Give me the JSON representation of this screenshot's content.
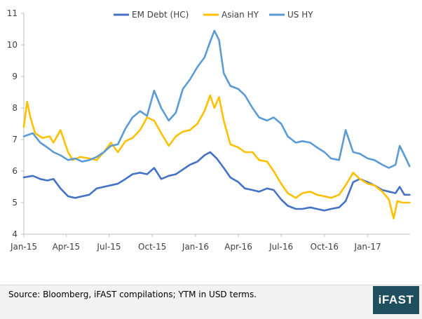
{
  "chart_data": {
    "type": "line",
    "title": "",
    "xlabel": "",
    "ylabel": "",
    "ylim": [
      4,
      11
    ],
    "yticks": [
      4,
      5,
      6,
      7,
      8,
      9,
      10,
      11
    ],
    "x_tick_labels": [
      "Jan-15",
      "Apr-15",
      "Jul-15",
      "Oct-15",
      "Jan-16",
      "Apr-16",
      "Jul-16",
      "Oct-16",
      "Jan-17"
    ],
    "x_tick_dates": [
      "2015-01-01",
      "2015-04-01",
      "2015-07-01",
      "2015-10-01",
      "2016-01-01",
      "2016-04-01",
      "2016-07-01",
      "2016-10-01",
      "2017-01-01"
    ],
    "x_range": [
      "2015-01-01",
      "2017-04-01"
    ],
    "grid": false,
    "legend_position": "top",
    "series": [
      {
        "name": "EM Debt (HC)",
        "color": "#4472c4",
        "points": [
          [
            "2015-01-01",
            5.8
          ],
          [
            "2015-01-20",
            5.85
          ],
          [
            "2015-02-05",
            5.75
          ],
          [
            "2015-02-20",
            5.7
          ],
          [
            "2015-03-05",
            5.75
          ],
          [
            "2015-03-20",
            5.45
          ],
          [
            "2015-04-05",
            5.2
          ],
          [
            "2015-04-20",
            5.15
          ],
          [
            "2015-05-05",
            5.2
          ],
          [
            "2015-05-20",
            5.25
          ],
          [
            "2015-06-05",
            5.45
          ],
          [
            "2015-06-20",
            5.5
          ],
          [
            "2015-07-05",
            5.55
          ],
          [
            "2015-07-20",
            5.6
          ],
          [
            "2015-08-05",
            5.75
          ],
          [
            "2015-08-20",
            5.9
          ],
          [
            "2015-09-05",
            5.95
          ],
          [
            "2015-09-20",
            5.9
          ],
          [
            "2015-10-05",
            6.1
          ],
          [
            "2015-10-20",
            5.75
          ],
          [
            "2015-11-05",
            5.85
          ],
          [
            "2015-11-20",
            5.9
          ],
          [
            "2015-12-05",
            6.05
          ],
          [
            "2015-12-20",
            6.2
          ],
          [
            "2016-01-05",
            6.3
          ],
          [
            "2016-01-20",
            6.5
          ],
          [
            "2016-02-01",
            6.6
          ],
          [
            "2016-02-15",
            6.4
          ],
          [
            "2016-03-01",
            6.1
          ],
          [
            "2016-03-15",
            5.8
          ],
          [
            "2016-04-01",
            5.65
          ],
          [
            "2016-04-15",
            5.45
          ],
          [
            "2016-05-01",
            5.4
          ],
          [
            "2016-05-15",
            5.35
          ],
          [
            "2016-06-01",
            5.45
          ],
          [
            "2016-06-15",
            5.4
          ],
          [
            "2016-07-01",
            5.1
          ],
          [
            "2016-07-15",
            4.9
          ],
          [
            "2016-08-01",
            4.8
          ],
          [
            "2016-08-15",
            4.8
          ],
          [
            "2016-09-01",
            4.85
          ],
          [
            "2016-09-15",
            4.8
          ],
          [
            "2016-10-01",
            4.75
          ],
          [
            "2016-10-15",
            4.8
          ],
          [
            "2016-11-01",
            4.85
          ],
          [
            "2016-11-15",
            5.05
          ],
          [
            "2016-12-01",
            5.65
          ],
          [
            "2016-12-15",
            5.75
          ],
          [
            "2017-01-01",
            5.65
          ],
          [
            "2017-01-15",
            5.55
          ],
          [
            "2017-02-01",
            5.4
          ],
          [
            "2017-02-15",
            5.35
          ],
          [
            "2017-03-01",
            5.3
          ],
          [
            "2017-03-10",
            5.5
          ],
          [
            "2017-03-20",
            5.25
          ],
          [
            "2017-03-31",
            5.25
          ]
        ]
      },
      {
        "name": "Asian HY",
        "color": "#ffc000",
        "points": [
          [
            "2015-01-01",
            7.4
          ],
          [
            "2015-01-08",
            8.2
          ],
          [
            "2015-01-15",
            7.7
          ],
          [
            "2015-01-25",
            7.2
          ],
          [
            "2015-02-10",
            7.05
          ],
          [
            "2015-02-25",
            7.1
          ],
          [
            "2015-03-05",
            6.9
          ],
          [
            "2015-03-20",
            7.3
          ],
          [
            "2015-04-05",
            6.6
          ],
          [
            "2015-04-15",
            6.35
          ],
          [
            "2015-05-01",
            6.45
          ],
          [
            "2015-05-20",
            6.4
          ],
          [
            "2015-06-05",
            6.35
          ],
          [
            "2015-06-20",
            6.6
          ],
          [
            "2015-07-05",
            6.9
          ],
          [
            "2015-07-20",
            6.6
          ],
          [
            "2015-08-05",
            6.95
          ],
          [
            "2015-08-20",
            7.05
          ],
          [
            "2015-09-05",
            7.3
          ],
          [
            "2015-09-20",
            7.7
          ],
          [
            "2015-10-05",
            7.6
          ],
          [
            "2015-10-20",
            7.2
          ],
          [
            "2015-11-05",
            6.8
          ],
          [
            "2015-11-20",
            7.1
          ],
          [
            "2015-12-05",
            7.25
          ],
          [
            "2015-12-20",
            7.3
          ],
          [
            "2016-01-05",
            7.5
          ],
          [
            "2016-01-20",
            7.9
          ],
          [
            "2016-02-01",
            8.4
          ],
          [
            "2016-02-10",
            8.0
          ],
          [
            "2016-02-20",
            8.35
          ],
          [
            "2016-03-01",
            7.6
          ],
          [
            "2016-03-15",
            6.85
          ],
          [
            "2016-04-01",
            6.75
          ],
          [
            "2016-04-15",
            6.6
          ],
          [
            "2016-05-01",
            6.6
          ],
          [
            "2016-05-15",
            6.35
          ],
          [
            "2016-06-01",
            6.3
          ],
          [
            "2016-06-15",
            6.0
          ],
          [
            "2016-07-01",
            5.6
          ],
          [
            "2016-07-15",
            5.3
          ],
          [
            "2016-08-01",
            5.15
          ],
          [
            "2016-08-15",
            5.3
          ],
          [
            "2016-09-01",
            5.35
          ],
          [
            "2016-09-15",
            5.25
          ],
          [
            "2016-10-01",
            5.2
          ],
          [
            "2016-10-15",
            5.15
          ],
          [
            "2016-11-01",
            5.25
          ],
          [
            "2016-11-15",
            5.55
          ],
          [
            "2016-12-01",
            5.95
          ],
          [
            "2016-12-15",
            5.75
          ],
          [
            "2017-01-01",
            5.6
          ],
          [
            "2017-01-15",
            5.55
          ],
          [
            "2017-02-01",
            5.35
          ],
          [
            "2017-02-15",
            5.1
          ],
          [
            "2017-02-25",
            4.5
          ],
          [
            "2017-03-05",
            5.05
          ],
          [
            "2017-03-15",
            5.0
          ],
          [
            "2017-03-31",
            5.0
          ]
        ]
      },
      {
        "name": "US HY",
        "color": "#5b9bd5",
        "points": [
          [
            "2015-01-01",
            7.1
          ],
          [
            "2015-01-20",
            7.2
          ],
          [
            "2015-02-05",
            6.9
          ],
          [
            "2015-02-20",
            6.75
          ],
          [
            "2015-03-05",
            6.6
          ],
          [
            "2015-03-20",
            6.5
          ],
          [
            "2015-04-05",
            6.35
          ],
          [
            "2015-04-20",
            6.4
          ],
          [
            "2015-05-05",
            6.3
          ],
          [
            "2015-05-20",
            6.35
          ],
          [
            "2015-06-05",
            6.45
          ],
          [
            "2015-06-20",
            6.6
          ],
          [
            "2015-07-05",
            6.8
          ],
          [
            "2015-07-20",
            6.85
          ],
          [
            "2015-08-05",
            7.35
          ],
          [
            "2015-08-20",
            7.7
          ],
          [
            "2015-09-05",
            7.9
          ],
          [
            "2015-09-20",
            7.75
          ],
          [
            "2015-10-05",
            8.55
          ],
          [
            "2015-10-20",
            8.0
          ],
          [
            "2015-11-05",
            7.6
          ],
          [
            "2015-11-20",
            7.85
          ],
          [
            "2015-12-05",
            8.6
          ],
          [
            "2015-12-20",
            8.9
          ],
          [
            "2016-01-05",
            9.3
          ],
          [
            "2016-01-20",
            9.6
          ],
          [
            "2016-02-01",
            10.1
          ],
          [
            "2016-02-10",
            10.45
          ],
          [
            "2016-02-20",
            10.15
          ],
          [
            "2016-03-01",
            9.1
          ],
          [
            "2016-03-15",
            8.7
          ],
          [
            "2016-04-01",
            8.6
          ],
          [
            "2016-04-15",
            8.4
          ],
          [
            "2016-05-01",
            8.0
          ],
          [
            "2016-05-15",
            7.7
          ],
          [
            "2016-06-01",
            7.6
          ],
          [
            "2016-06-15",
            7.7
          ],
          [
            "2016-07-01",
            7.5
          ],
          [
            "2016-07-15",
            7.1
          ],
          [
            "2016-08-01",
            6.9
          ],
          [
            "2016-08-15",
            6.95
          ],
          [
            "2016-09-01",
            6.9
          ],
          [
            "2016-09-15",
            6.75
          ],
          [
            "2016-10-01",
            6.6
          ],
          [
            "2016-10-15",
            6.4
          ],
          [
            "2016-11-01",
            6.35
          ],
          [
            "2016-11-15",
            7.3
          ],
          [
            "2016-12-01",
            6.6
          ],
          [
            "2016-12-15",
            6.55
          ],
          [
            "2017-01-01",
            6.4
          ],
          [
            "2017-01-15",
            6.35
          ],
          [
            "2017-02-01",
            6.2
          ],
          [
            "2017-02-15",
            6.1
          ],
          [
            "2017-03-01",
            6.2
          ],
          [
            "2017-03-10",
            6.8
          ],
          [
            "2017-03-20",
            6.5
          ],
          [
            "2017-03-31",
            6.15
          ]
        ]
      }
    ]
  },
  "footer": {
    "source_text": "Source: Bloomberg, iFAST compilations; YTM in USD terms.",
    "logo_text": "iFAST"
  }
}
